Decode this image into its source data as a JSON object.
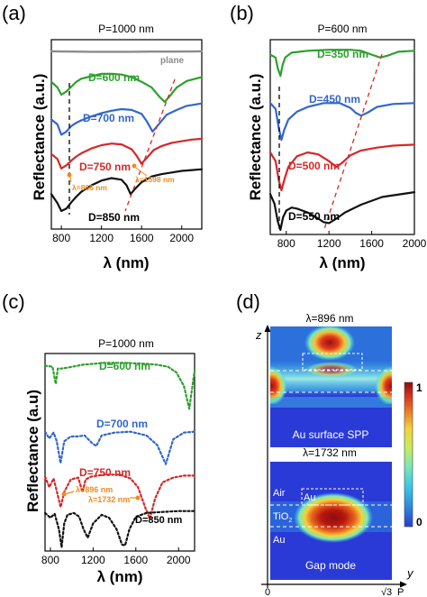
{
  "panels": {
    "a": {
      "letter": "(a)",
      "chart_data": {
        "type": "line",
        "title": "P=1000 nm",
        "xlabel": "λ (nm)",
        "ylabel": "Reflectance (a.u.)",
        "xlim": [
          700,
          2200
        ],
        "xticks": [
          800,
          1200,
          1600,
          2000
        ],
        "series": [
          {
            "name": "plane",
            "color": "#8c8c8c",
            "x": [
              700,
              900,
              1100,
              1300,
              1500,
              1700,
              1900,
              2100,
              2200
            ],
            "y": [
              9.95,
              9.93,
              9.92,
              9.92,
              9.92,
              9.93,
              9.93,
              9.94,
              9.95
            ]
          },
          {
            "name": "D=600 nm",
            "color": "#2ca02c",
            "x": [
              700,
              760,
              800,
              850,
              900,
              950,
              1000,
              1100,
              1200,
              1300,
              1400,
              1500,
              1600,
              1700,
              1780,
              1830,
              1880,
              1950,
              2050,
              2200
            ],
            "y": [
              8.05,
              7.7,
              7.25,
              7.45,
              7.75,
              8.05,
              8.25,
              8.4,
              8.55,
              8.55,
              8.5,
              8.35,
              8.05,
              7.7,
              7.1,
              6.8,
              7.15,
              7.7,
              8.1,
              8.35
            ]
          },
          {
            "name": "D=700 nm",
            "color": "#3366cc",
            "x": [
              700,
              760,
              800,
              850,
              900,
              950,
              1000,
              1100,
              1200,
              1300,
              1400,
              1500,
              1600,
              1650,
              1710,
              1770,
              1850,
              1950,
              2050,
              2200
            ],
            "y": [
              5.7,
              5.4,
              4.75,
              4.95,
              5.3,
              5.5,
              5.65,
              5.9,
              6.1,
              6.25,
              6.35,
              6.3,
              6.05,
              5.6,
              4.95,
              5.4,
              6.0,
              6.3,
              6.55,
              6.7
            ]
          },
          {
            "name": "D=750 nm",
            "color": "#d62728",
            "x": [
              700,
              760,
              800,
              850,
              900,
              950,
              1000,
              1100,
              1200,
              1300,
              1400,
              1500,
              1550,
              1598,
              1650,
              1720,
              1800,
              1900,
              2000,
              2100,
              2200
            ],
            "y": [
              3.55,
              3.25,
              2.65,
              2.85,
              3.15,
              3.4,
              3.6,
              3.9,
              4.1,
              4.2,
              4.15,
              3.85,
              3.45,
              2.95,
              3.3,
              3.8,
              4.05,
              4.25,
              4.35,
              4.45,
              4.5
            ]
          },
          {
            "name": "D=850 nm",
            "color": "#111111",
            "x": [
              700,
              760,
              800,
              850,
              900,
              950,
              1000,
              1100,
              1200,
              1300,
              1400,
              1450,
              1490,
              1530,
              1600,
              1700,
              1800,
              1900,
              2000,
              2100,
              2200
            ],
            "y": [
              1.05,
              0.5,
              0.0,
              0.15,
              0.55,
              0.9,
              1.2,
              1.6,
              1.9,
              2.05,
              1.95,
              1.6,
              1.05,
              1.35,
              1.8,
              2.15,
              2.3,
              2.4,
              2.5,
              2.55,
              2.6
            ]
          }
        ],
        "annotations": [
          "λ=866 nm",
          "λ=1598 nm"
        ]
      }
    },
    "b": {
      "letter": "(b)",
      "chart_data": {
        "type": "line",
        "title": "P=600 nm",
        "xlabel": "λ (nm)",
        "ylabel": "Reflectance (a.u.)",
        "xlim": [
          650,
          2000
        ],
        "xticks": [
          800,
          1200,
          1600,
          2000
        ],
        "series": [
          {
            "name": "D=350 nm",
            "color": "#2ca02c",
            "x": [
              650,
              700,
              720,
              745,
              765,
              790,
              850,
              1000,
              1200,
              1400,
              1500,
              1600,
              1680,
              1750,
              1850,
              2000
            ],
            "y": [
              9.1,
              8.95,
              8.4,
              8.0,
              8.55,
              8.95,
              9.2,
              9.3,
              9.35,
              9.35,
              9.3,
              9.1,
              8.95,
              9.05,
              9.25,
              9.3
            ]
          },
          {
            "name": "D=450 nm",
            "color": "#3366cc",
            "x": [
              650,
              700,
              730,
              755,
              780,
              820,
              900,
              1000,
              1150,
              1300,
              1400,
              1450,
              1500,
              1560,
              1650,
              1800,
              2000
            ],
            "y": [
              6.6,
              6.3,
              5.3,
              4.7,
              5.2,
              5.75,
              6.15,
              6.4,
              6.6,
              6.6,
              6.35,
              6.1,
              5.95,
              6.1,
              6.4,
              6.55,
              6.6
            ]
          },
          {
            "name": "D=500 nm",
            "color": "#d62728",
            "x": [
              650,
              700,
              730,
              755,
              785,
              820,
              900,
              1000,
              1100,
              1200,
              1270,
              1320,
              1400,
              1500,
              1650,
              1800,
              2000
            ],
            "y": [
              4.05,
              3.6,
              2.6,
              2.1,
              2.7,
              3.3,
              3.85,
              4.05,
              3.95,
              3.6,
              3.3,
              3.5,
              3.9,
              4.15,
              4.3,
              4.4,
              4.45
            ]
          },
          {
            "name": "D=550 nm",
            "color": "#111111",
            "x": [
              650,
              690,
              720,
              745,
              770,
              800,
              850,
              900,
              950,
              1000,
              1080,
              1150,
              1200,
              1260,
              1350,
              1500,
              1700,
              2000
            ],
            "y": [
              1.9,
              1.4,
              0.5,
              0.05,
              0.7,
              1.05,
              1.2,
              1.15,
              1.05,
              0.95,
              0.7,
              0.45,
              0.4,
              0.6,
              0.95,
              1.35,
              1.75,
              2.0
            ]
          }
        ]
      }
    },
    "c": {
      "letter": "(c)",
      "chart_data": {
        "type": "line",
        "title": "P=1000 nm",
        "xlabel": "λ (nm)",
        "ylabel": "Reflectance (a.u)",
        "xlim": [
          750,
          2150
        ],
        "xticks": [
          800,
          1200,
          1600,
          2000
        ],
        "series": [
          {
            "name": "D=600 nm",
            "color": "#2ca02c",
            "x": [
              750,
              820,
              850,
              870,
              900,
              960,
              1100,
              1300,
              1500,
              1700,
              1800,
              1900,
              1980,
              2050,
              2100,
              2150
            ],
            "y": [
              9.55,
              9.5,
              8.6,
              9.4,
              9.4,
              9.45,
              9.6,
              9.7,
              9.7,
              9.65,
              9.6,
              9.5,
              9.2,
              8.5,
              7.3,
              9.3
            ]
          },
          {
            "name": "D=700 nm",
            "color": "#3366cc",
            "x": [
              750,
              790,
              830,
              860,
              895,
              930,
              990,
              1050,
              1120,
              1190,
              1230,
              1280,
              1400,
              1550,
              1700,
              1800,
              1880,
              1950,
              2050,
              2150
            ],
            "y": [
              6.1,
              5.75,
              6.05,
              5.6,
              4.45,
              5.6,
              5.85,
              5.85,
              5.9,
              5.5,
              5.35,
              5.9,
              6.05,
              6.1,
              5.9,
              5.4,
              4.4,
              5.7,
              6.05,
              6.1
            ]
          },
          {
            "name": "D=750 nm",
            "color": "#d62728",
            "x": [
              750,
              790,
              830,
              860,
              896,
              930,
              990,
              1060,
              1100,
              1130,
              1180,
              1300,
              1450,
              1550,
              1620,
              1690,
              1732,
              1780,
              1850,
              1950,
              2050,
              2150
            ],
            "y": [
              3.75,
              3.2,
              3.65,
              3.0,
              2.15,
              2.95,
              3.6,
              3.7,
              2.95,
              3.6,
              3.75,
              3.85,
              3.85,
              3.65,
              3.2,
              2.1,
              1.55,
              2.6,
              3.45,
              3.7,
              3.8,
              3.8
            ]
          },
          {
            "name": "D=850 nm",
            "color": "#111111",
            "x": [
              750,
              800,
              840,
              880,
              905,
              930,
              960,
              1020,
              1070,
              1110,
              1150,
              1200,
              1280,
              1350,
              1420,
              1470,
              1500,
              1540,
              1600,
              1700,
              1850,
              2000,
              2150
            ],
            "y": [
              1.85,
              1.6,
              1.8,
              1.0,
              0.05,
              1.3,
              1.75,
              1.85,
              1.65,
              1.0,
              0.55,
              1.3,
              1.75,
              1.6,
              1.0,
              0.2,
              0.15,
              1.0,
              1.65,
              1.85,
              1.9,
              1.95,
              1.95
            ]
          }
        ],
        "annotations": [
          "λ=896 nm",
          "λ=1732 nm"
        ]
      }
    },
    "d": {
      "letter": "(d)",
      "axis_z": "z",
      "axis_y": "y",
      "tick_zero": "0",
      "tick_sqrt3": "√3",
      "tick_p": "P",
      "map1_title": "λ=896 nm",
      "map1_caption": "Au surface SPP",
      "map2_title": "λ=1732 nm",
      "map2_caption": "Gap mode",
      "layer_air": "Air",
      "layer_au_particle": "Au",
      "layer_tio2": "TiO",
      "layer_tio2_sub": "2",
      "layer_au_substrate": "Au",
      "colorbar_max": "1",
      "colorbar_min": "0",
      "colorscale": [
        "#2a3ad6",
        "#2c8be0",
        "#3dc8e8",
        "#7ee8b4",
        "#c6ec5a",
        "#f4d23a",
        "#ef7a22",
        "#d22a1c",
        "#8a0f0f"
      ]
    }
  }
}
